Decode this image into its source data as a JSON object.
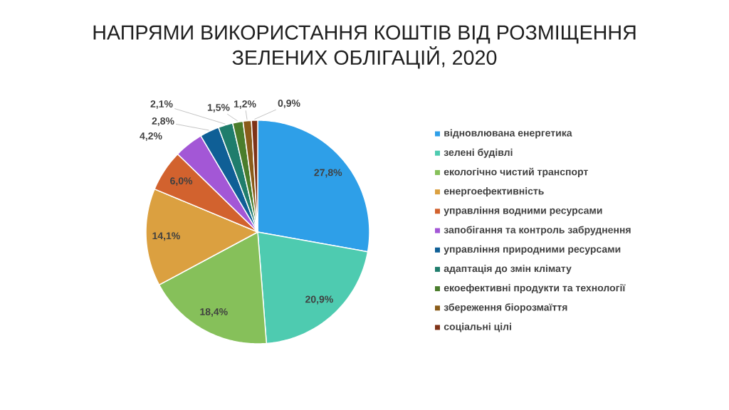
{
  "chart_data": {
    "type": "pie",
    "title": "НАПРЯМИ ВИКОРИСТАННЯ КОШТІВ ВІД РОЗМІЩЕННЯ ЗЕЛЕНИХ ОБЛІГАЦІЙ, 2020",
    "categories": [
      "відновлювана енергетика",
      "зелені будівлі",
      "екологічно чистий транспорт",
      "енергоефективність",
      "управління водними ресурсами",
      "запобігання та контроль забруднення",
      "управління природними ресурсами",
      "адаптація до змін клімату",
      "екоефективні продукти та технології",
      "збереження біорозмаїття",
      "соціальні цілі"
    ],
    "values": [
      27.8,
      20.9,
      18.4,
      14.1,
      6.0,
      4.2,
      2.8,
      2.1,
      1.5,
      1.2,
      0.9
    ],
    "colors": [
      "#2e9fe8",
      "#4ecbb0",
      "#86c05a",
      "#dba040",
      "#d2622e",
      "#a357d6",
      "#0f5f96",
      "#1f7d6c",
      "#4a7d2c",
      "#8a5c1a",
      "#7f3318"
    ],
    "value_labels": [
      "27,8%",
      "20,9%",
      "18,4%",
      "14,1%",
      "6,0%",
      "4,2%",
      "2,8%",
      "2,1%",
      "1,5%",
      "1,2%",
      "0,9%"
    ],
    "legend": "right"
  }
}
